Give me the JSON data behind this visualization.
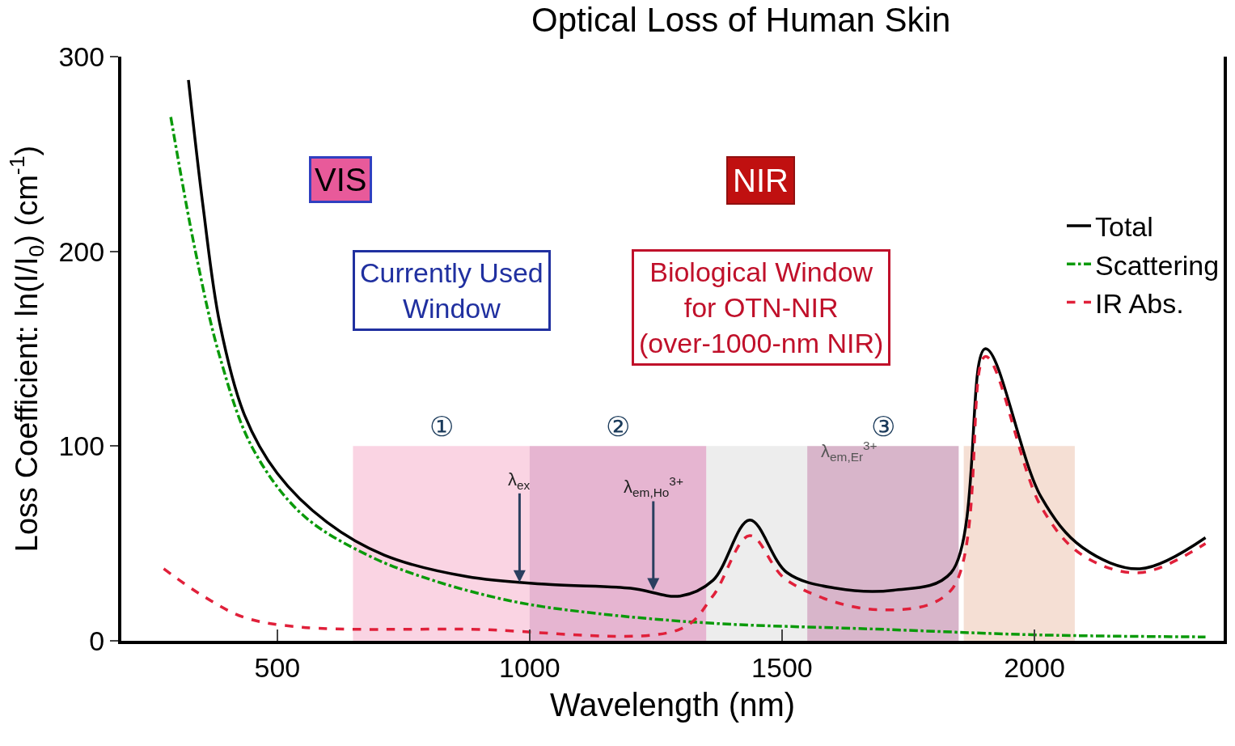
{
  "chart_data": {
    "type": "line",
    "title": "Optical Loss of Human Skin",
    "xlabel": "Wavelength (nm)",
    "ylabel": "Loss Coefficient: ln(I/I$_{0}$) (cm$^{-1}$)",
    "xlim": [
      191,
      2375
    ],
    "ylim": [
      0,
      300
    ],
    "xticks": [
      500,
      1000,
      1500,
      2000
    ],
    "yticks": [
      0,
      100,
      200,
      300
    ],
    "grid": false,
    "legend": "top right",
    "series": [
      {
        "name": "Total",
        "color": "#000000",
        "line_style": "solid",
        "x": [
          324,
          353,
          386,
          435,
          500,
          598,
          712,
          875,
          1037,
          1200,
          1298,
          1363,
          1436,
          1510,
          1607,
          1721,
          1835,
          1903,
          2013,
          2095,
          2209,
          2339
        ],
        "values": [
          288,
          223,
          163,
          116,
          86,
          61,
          44,
          33,
          29,
          27,
          23,
          31,
          62,
          35,
          27,
          26,
          35,
          150,
          74,
          48,
          37,
          53
        ]
      },
      {
        "name": "Scattering",
        "color": "#0a9a0a",
        "line_style": "dashdot",
        "x": [
          289,
          337,
          386,
          451,
          549,
          679,
          809,
          972,
          1135,
          1363,
          1688,
          2014,
          2339
        ],
        "values": [
          269,
          201,
          146,
          99,
          65,
          44,
          31,
          20,
          14,
          9,
          6,
          3,
          2
        ]
      },
      {
        "name": "IR Abs.",
        "color": "#e0203a",
        "line_style": "dashed",
        "x": [
          275,
          353,
          435,
          549,
          875,
          1298,
          1363,
          1436,
          1510,
          1688,
          1835,
          1903,
          2013,
          2095,
          2209,
          2339
        ],
        "values": [
          37,
          23,
          12,
          7,
          6,
          6,
          23,
          54,
          31,
          16,
          26,
          146,
          69,
          44,
          35,
          50
        ]
      }
    ],
    "bands": [
      {
        "axis": "x",
        "from": 650,
        "to": 1000,
        "label": "①",
        "color": "#f3a0c0"
      },
      {
        "axis": "x",
        "from": 1000,
        "to": 1350,
        "label": "②",
        "color": "#c85a9a"
      },
      {
        "axis": "x",
        "from": 1550,
        "to": 1850,
        "label": "③",
        "color": "#a85a8a"
      },
      {
        "axis": "x",
        "from": 1350,
        "to": 1550,
        "label": null,
        "color": "#d8d8d8"
      },
      {
        "axis": "x",
        "from": 1860,
        "to": 2080,
        "label": null,
        "color": "#e8b8a0"
      }
    ],
    "annotations": [
      {
        "text": "λ$_{ex}$",
        "x": 980,
        "y": 30
      },
      {
        "text": "λ$_{em,Ho}$$^{3+}$",
        "x": 1245,
        "y": 26
      },
      "VIS",
      "NIR",
      "Currently Used\nWindow",
      "Biological Window\nfor OTN-NIR\n(over-1000-nm NIR)",
      "λ$_{em,Er}$$^{3+}$"
    ]
  }
}
